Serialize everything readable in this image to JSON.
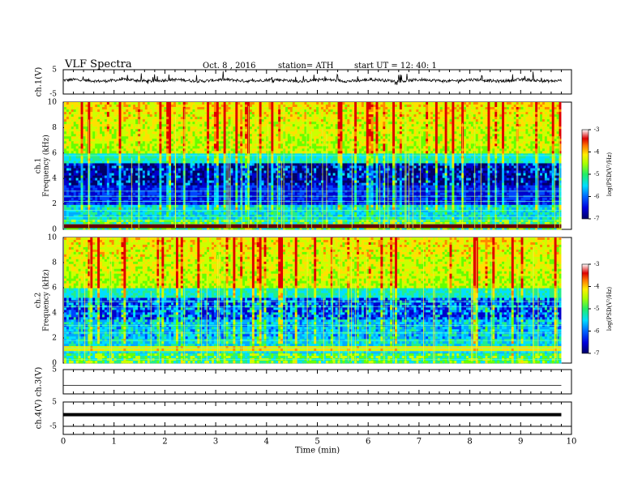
{
  "header": {
    "title": "VLF  Spectra",
    "date": "Oct. 8  , 2016",
    "station": "station= ATH",
    "start": "start  UT  =    12: 40: 1"
  },
  "colors": {
    "spectrogram_scale": [
      "#000066",
      "#0000cc",
      "#0044ff",
      "#00aaff",
      "#00e0ff",
      "#22ee88",
      "#66ff00",
      "#ccff00",
      "#ffe000",
      "#ff8800",
      "#e00000",
      "#ffffff"
    ],
    "text": "#000000"
  },
  "chart_data": [
    {
      "type": "line",
      "ylabel": "ch.1(V)",
      "ylim": [
        -5,
        5
      ],
      "yticks": [
        "5",
        "-5"
      ],
      "description_series": "waveform oscillating around ~0 V with spikes",
      "x_range_min": [
        0,
        10
      ]
    },
    {
      "type": "heatmap",
      "ylabel": "ch.1\nFrequency  (kHz)",
      "ylabel_channel": "ch.1",
      "ylabel_freq": "Frequency  (kHz)",
      "ylim": [
        0,
        10
      ],
      "yticks": [
        "0",
        "2",
        "4",
        "6",
        "8",
        "10"
      ],
      "colorbar": {
        "label": "log(PSD(V²/Hz)",
        "range": [
          -7,
          -3
        ],
        "ticks": [
          "-3",
          "-4",
          "-5",
          "-6",
          "-7"
        ]
      }
    },
    {
      "type": "heatmap",
      "ylabel": "ch.2\nFrequency  (kHz)",
      "ylabel_channel": "ch.2",
      "ylabel_freq": "Frequency  (kHz)",
      "ylim": [
        0,
        10
      ],
      "yticks": [
        "0",
        "2",
        "4",
        "6",
        "8",
        "10"
      ],
      "colorbar": {
        "label": "log(PSD(V²/Hz)",
        "range": [
          -7,
          -3
        ],
        "ticks": [
          "-3",
          "-4",
          "-5",
          "-6",
          "-7"
        ]
      }
    },
    {
      "type": "line",
      "ylabel": "ch.3(V)",
      "ylim": [
        -5,
        5
      ],
      "yticks": [
        "5"
      ],
      "description_series": "flat line near 0 V"
    },
    {
      "type": "line",
      "ylabel": "ch.4(V)",
      "ylim": [
        -5,
        5
      ],
      "yticks": [
        "5",
        "-5"
      ],
      "description_series": "thick flat line near 0 V"
    }
  ],
  "xaxis": {
    "label": "Time  (min)",
    "ticks": [
      "0",
      "1",
      "2",
      "3",
      "4",
      "5",
      "6",
      "7",
      "8",
      "9",
      "10"
    ],
    "range": [
      0,
      10
    ]
  }
}
